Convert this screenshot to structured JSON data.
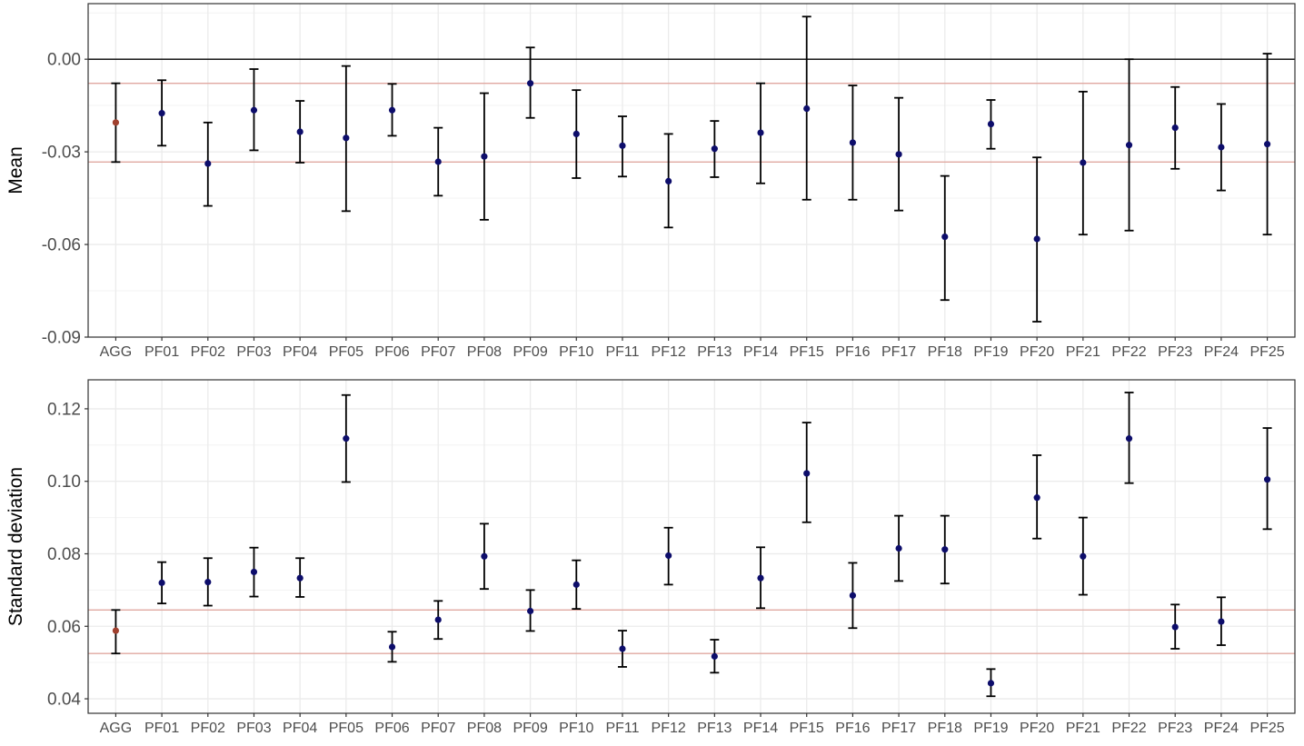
{
  "chart_data": [
    {
      "type": "errorbar",
      "ylabel": "Mean",
      "xlabel": "",
      "grid": true,
      "ylim": [
        -0.09,
        0.018
      ],
      "y_ticks": [
        0.0,
        -0.03,
        -0.06,
        -0.09
      ],
      "y_tick_labels": [
        "0.00",
        "-0.03",
        "-0.06",
        "-0.09"
      ],
      "zero_line": 0.0,
      "reference_band": [
        -0.0078,
        -0.0333
      ],
      "categories": [
        "AGG",
        "PF01",
        "PF02",
        "PF03",
        "PF04",
        "PF05",
        "PF06",
        "PF07",
        "PF08",
        "PF09",
        "PF10",
        "PF11",
        "PF12",
        "PF13",
        "PF14",
        "PF15",
        "PF16",
        "PF17",
        "PF18",
        "PF19",
        "PF20",
        "PF21",
        "PF22",
        "PF23",
        "PF24",
        "PF25"
      ],
      "values": [
        -0.0205,
        -0.0175,
        -0.0338,
        -0.0165,
        -0.0235,
        -0.0255,
        -0.0165,
        -0.0332,
        -0.0315,
        -0.0078,
        -0.0242,
        -0.028,
        -0.0395,
        -0.029,
        -0.0238,
        -0.016,
        -0.027,
        -0.0308,
        -0.0575,
        -0.021,
        -0.0582,
        -0.0335,
        -0.0278,
        -0.0222,
        -0.0285,
        -0.0275
      ],
      "lower": [
        -0.0333,
        -0.028,
        -0.0475,
        -0.0295,
        -0.0335,
        -0.0492,
        -0.0248,
        -0.0442,
        -0.052,
        -0.019,
        -0.0385,
        -0.038,
        -0.0545,
        -0.0382,
        -0.0402,
        -0.0455,
        -0.0455,
        -0.049,
        -0.078,
        -0.029,
        -0.085,
        -0.0568,
        -0.0555,
        -0.0355,
        -0.0425,
        -0.0568
      ],
      "upper": [
        -0.0078,
        -0.0068,
        -0.0205,
        -0.0032,
        -0.0135,
        -0.0022,
        -0.008,
        -0.0222,
        -0.011,
        0.0038,
        -0.01,
        -0.0185,
        -0.0242,
        -0.02,
        -0.0078,
        0.0138,
        -0.0085,
        -0.0125,
        -0.0378,
        -0.0132,
        -0.0318,
        -0.0105,
        0.0,
        -0.009,
        -0.0145,
        0.0018
      ],
      "colors": {
        "agg_point": "#a0402e",
        "point": "#0d0d6b",
        "errorbar": "#000000",
        "band_line": "#e0a8a0",
        "zero_line": "#000000",
        "grid": "#ebebeb"
      }
    },
    {
      "type": "errorbar",
      "ylabel": "Standard deviation",
      "xlabel": "",
      "grid": true,
      "ylim": [
        0.036,
        0.128
      ],
      "y_ticks": [
        0.04,
        0.06,
        0.08,
        0.1,
        0.12
      ],
      "y_tick_labels": [
        "0.04",
        "0.06",
        "0.08",
        "0.10",
        "0.12"
      ],
      "reference_band": [
        0.0645,
        0.0525
      ],
      "categories": [
        "AGG",
        "PF01",
        "PF02",
        "PF03",
        "PF04",
        "PF05",
        "PF06",
        "PF07",
        "PF08",
        "PF09",
        "PF10",
        "PF11",
        "PF12",
        "PF13",
        "PF14",
        "PF15",
        "PF16",
        "PF17",
        "PF18",
        "PF19",
        "PF20",
        "PF21",
        "PF22",
        "PF23",
        "PF24",
        "PF25"
      ],
      "values": [
        0.0588,
        0.072,
        0.0722,
        0.075,
        0.0733,
        0.1118,
        0.0543,
        0.0618,
        0.0793,
        0.0642,
        0.0715,
        0.0538,
        0.0795,
        0.0517,
        0.0733,
        0.1022,
        0.0685,
        0.0815,
        0.0812,
        0.0443,
        0.0955,
        0.0793,
        0.1118,
        0.0598,
        0.0613,
        0.1005
      ],
      "lower": [
        0.0525,
        0.0663,
        0.0657,
        0.0682,
        0.0681,
        0.0998,
        0.0502,
        0.0565,
        0.0703,
        0.0587,
        0.0648,
        0.0488,
        0.0715,
        0.0472,
        0.065,
        0.0887,
        0.0595,
        0.0725,
        0.0718,
        0.0407,
        0.0842,
        0.0687,
        0.0995,
        0.0538,
        0.0548,
        0.0868
      ],
      "upper": [
        0.0645,
        0.0777,
        0.0788,
        0.0817,
        0.0788,
        0.1238,
        0.0585,
        0.067,
        0.0883,
        0.07,
        0.0782,
        0.0588,
        0.0872,
        0.0563,
        0.0818,
        0.1162,
        0.0775,
        0.0905,
        0.0905,
        0.0482,
        0.1072,
        0.09,
        0.1245,
        0.066,
        0.068,
        0.1147
      ],
      "colors": {
        "agg_point": "#a0402e",
        "point": "#0d0d6b",
        "errorbar": "#000000",
        "band_line": "#e0a8a0",
        "grid": "#ebebeb"
      }
    }
  ]
}
